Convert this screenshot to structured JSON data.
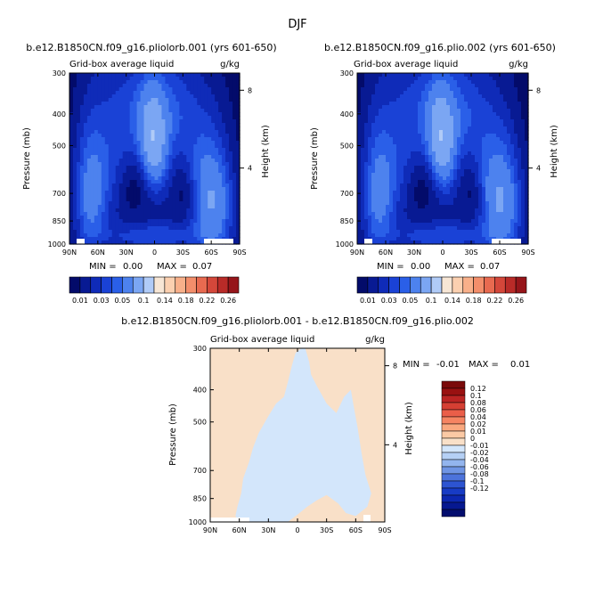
{
  "figure_title": "DJF",
  "colors": {
    "positive": [
      "#f9e0c8",
      "#fbc9a4",
      "#f9a87f",
      "#f58462",
      "#ea5e49",
      "#d53f33",
      "#bb2423",
      "#991111",
      "#7a0a0a"
    ],
    "negative": [
      "#d3e6fb",
      "#b5d0f5",
      "#93b5ee",
      "#6f95e4",
      "#4c73db",
      "#2d54d1",
      "#173bc5",
      "#0c27b0",
      "#061890",
      "#030d6e"
    ],
    "sequential": [
      "#030b6a",
      "#081a93",
      "#0f2bb8",
      "#1a42d6",
      "#2a5fe8",
      "#4d82ee",
      "#7ba6f3",
      "#b0cbf7",
      "#f7e6d5",
      "#fbd0b0",
      "#f8b08a",
      "#f38e6b",
      "#e86a50",
      "#d4473a",
      "#b92b28",
      "#96151a",
      "#760c10"
    ]
  },
  "chart_data": [
    {
      "type": "heatmap",
      "title": "b.e12.B1850CN.f09_g16.pliolorb.001 (yrs 601-650)",
      "left_label": "Grid-box average liquid",
      "units_label": "g/kg",
      "xlabel": "",
      "ylabel": "Pressure (mb)",
      "right_label": "Height (km)",
      "x_ticks": [
        "90N",
        "60N",
        "30N",
        "0",
        "30S",
        "60S",
        "90S"
      ],
      "x_tick_values": [
        90,
        60,
        30,
        0,
        -30,
        -60,
        -90
      ],
      "y_ticks": [
        "300",
        "400",
        "500",
        "700",
        "850",
        "1000"
      ],
      "y_tick_values": [
        300,
        400,
        500,
        700,
        850,
        1000
      ],
      "ylim": [
        1000,
        300
      ],
      "right_ticks": [
        "8",
        "4"
      ],
      "right_tick_values": [
        8,
        4
      ],
      "min_label": "MIN =",
      "min_value": "0.00",
      "max_label": "MAX =",
      "max_value": "0.07",
      "colorbar_orientation": "horizontal",
      "colorbar_labels": [
        "0.01",
        "0.03",
        "0.05",
        "0.1",
        "0.14",
        "0.18",
        "0.22",
        "0.26"
      ],
      "colorbar_levels": [
        0.01,
        0.02,
        0.03,
        0.04,
        0.05,
        0.07,
        0.1,
        0.12,
        0.14,
        0.16,
        0.18,
        0.2,
        0.22,
        0.24,
        0.26
      ],
      "field_blobs": [
        {
          "lat": 2,
          "p": 500,
          "amp": 0.068,
          "slat": 10,
          "sp": 110
        },
        {
          "lat": 68,
          "p": 730,
          "amp": 0.045,
          "slat": 12,
          "sp": 220
        },
        {
          "lat": -62,
          "p": 760,
          "amp": 0.06,
          "slat": 15,
          "sp": 200
        },
        {
          "lat": 40,
          "p": 560,
          "amp": 0.03,
          "slat": 25,
          "sp": 210
        },
        {
          "lat": -30,
          "p": 560,
          "amp": 0.03,
          "slat": 25,
          "sp": 200
        },
        {
          "lat": 0,
          "p": 950,
          "amp": 0.032,
          "slat": 40,
          "sp": 70
        },
        {
          "lat": 0,
          "p": 380,
          "amp": 0.025,
          "slat": 28,
          "sp": 90
        }
      ]
    },
    {
      "type": "heatmap",
      "title": "b.e12.B1850CN.f09_g16.plio.002 (yrs 601-650)",
      "left_label": "Grid-box average liquid",
      "units_label": "g/kg",
      "xlabel": "",
      "ylabel": "Pressure (mb)",
      "right_label": "Height (km)",
      "x_ticks": [
        "90N",
        "60N",
        "30N",
        "0",
        "30S",
        "60S",
        "90S"
      ],
      "x_tick_values": [
        90,
        60,
        30,
        0,
        -30,
        -60,
        -90
      ],
      "y_ticks": [
        "300",
        "400",
        "500",
        "700",
        "850",
        "1000"
      ],
      "y_tick_values": [
        300,
        400,
        500,
        700,
        850,
        1000
      ],
      "ylim": [
        1000,
        300
      ],
      "right_ticks": [
        "8",
        "4"
      ],
      "right_tick_values": [
        8,
        4
      ],
      "min_label": "MIN =",
      "min_value": "0.00",
      "max_label": "MAX =",
      "max_value": "0.07",
      "colorbar_orientation": "horizontal",
      "colorbar_labels": [
        "0.01",
        "0.03",
        "0.05",
        "0.1",
        "0.14",
        "0.18",
        "0.22",
        "0.26"
      ],
      "colorbar_levels": [
        0.01,
        0.02,
        0.03,
        0.04,
        0.05,
        0.07,
        0.1,
        0.12,
        0.14,
        0.16,
        0.18,
        0.2,
        0.22,
        0.24,
        0.26
      ],
      "field_blobs": [
        {
          "lat": 2,
          "p": 500,
          "amp": 0.068,
          "slat": 10,
          "sp": 110
        },
        {
          "lat": 68,
          "p": 730,
          "amp": 0.045,
          "slat": 12,
          "sp": 220
        },
        {
          "lat": -62,
          "p": 760,
          "amp": 0.061,
          "slat": 15,
          "sp": 200
        },
        {
          "lat": 40,
          "p": 560,
          "amp": 0.03,
          "slat": 25,
          "sp": 210
        },
        {
          "lat": -30,
          "p": 560,
          "amp": 0.031,
          "slat": 25,
          "sp": 200
        },
        {
          "lat": 0,
          "p": 950,
          "amp": 0.032,
          "slat": 40,
          "sp": 70
        },
        {
          "lat": 0,
          "p": 380,
          "amp": 0.025,
          "slat": 28,
          "sp": 90
        }
      ]
    },
    {
      "type": "heatmap",
      "title": "b.e12.B1850CN.f09_g16.pliolorb.001 - b.e12.B1850CN.f09_g16.plio.002",
      "left_label": "Grid-box average liquid",
      "units_label": "g/kg",
      "xlabel": "",
      "ylabel": "Pressure (mb)",
      "right_label": "Height (km)",
      "x_ticks": [
        "90N",
        "60N",
        "30N",
        "0",
        "30S",
        "60S",
        "90S"
      ],
      "x_tick_values": [
        90,
        60,
        30,
        0,
        -30,
        -60,
        -90
      ],
      "y_ticks": [
        "300",
        "400",
        "500",
        "700",
        "850",
        "1000"
      ],
      "y_tick_values": [
        300,
        400,
        500,
        700,
        850,
        1000
      ],
      "ylim": [
        1000,
        300
      ],
      "right_ticks": [
        "8",
        "4"
      ],
      "right_tick_values": [
        8,
        4
      ],
      "min_label": "MIN =",
      "min_value": "-0.01",
      "max_label": "MAX =",
      "max_value": "0.01",
      "colorbar_orientation": "vertical",
      "colorbar_labels": [
        "0.12",
        "0.1",
        "0.08",
        "0.06",
        "0.04",
        "0.02",
        "0.01",
        "0",
        "-0.01",
        "-0.02",
        "-0.04",
        "-0.06",
        "-0.08",
        "-0.1",
        "-0.12"
      ],
      "regions": {
        "positive_value": 0.005,
        "negative_value": -0.005
      }
    }
  ]
}
